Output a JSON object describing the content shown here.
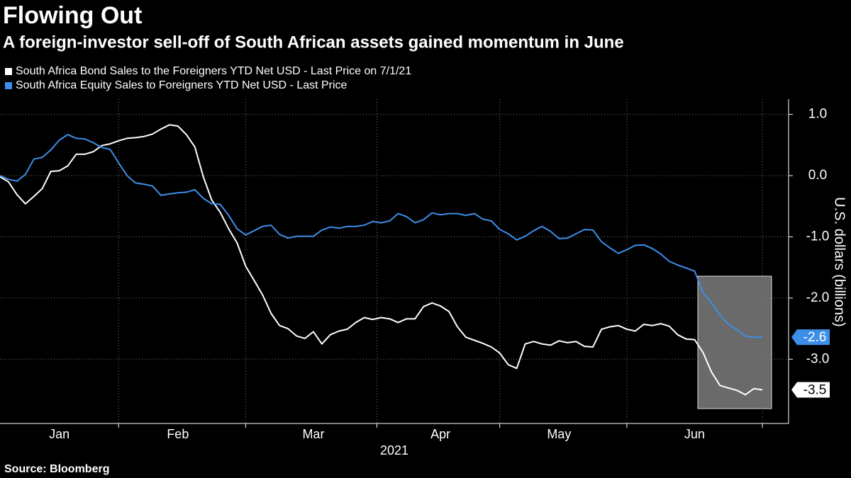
{
  "chart_data": {
    "type": "line",
    "title": "Flowing Out",
    "subtitle": "A foreign-investor sell-off of South African assets gained momentum in June",
    "source": "Source: Bloomberg",
    "y_label": "U.S. dollars (billions)",
    "x_label": "2021",
    "categories": [
      null,
      null,
      null,
      null,
      null,
      null,
      null,
      "Jan",
      null,
      null,
      null,
      null,
      null,
      null,
      null,
      null,
      null,
      null,
      null,
      null,
      null,
      "Feb",
      null,
      null,
      null,
      null,
      null,
      null,
      null,
      null,
      null,
      null,
      null,
      null,
      null,
      null,
      null,
      "Mar",
      null,
      null,
      null,
      null,
      null,
      null,
      null,
      null,
      null,
      null,
      null,
      null,
      null,
      null,
      "Apr",
      null,
      null,
      null,
      null,
      null,
      null,
      null,
      null,
      null,
      null,
      null,
      null,
      null,
      "May",
      null,
      null,
      null,
      null,
      null,
      null,
      null,
      null,
      null,
      null,
      null,
      null,
      null,
      null,
      null,
      "Jun",
      null,
      null,
      null,
      null,
      null,
      null,
      null,
      null
    ],
    "series": [
      {
        "name": "South Africa Bond Sales to the Foreigners YTD Net USD - Last Price on 7/1/21",
        "color": "#ffffff",
        "values": [
          -0.02,
          -0.1,
          -0.31,
          -0.46,
          -0.34,
          -0.21,
          0.07,
          0.08,
          0.16,
          0.35,
          0.35,
          0.39,
          0.49,
          0.52,
          0.57,
          0.61,
          0.62,
          0.64,
          0.68,
          0.76,
          0.83,
          0.81,
          0.67,
          0.47,
          -0.02,
          -0.4,
          -0.6,
          -0.87,
          -1.1,
          -1.48,
          -1.71,
          -1.95,
          -2.25,
          -2.45,
          -2.5,
          -2.62,
          -2.66,
          -2.55,
          -2.75,
          -2.6,
          -2.54,
          -2.51,
          -2.4,
          -2.32,
          -2.35,
          -2.32,
          -2.34,
          -2.4,
          -2.34,
          -2.34,
          -2.14,
          -2.08,
          -2.13,
          -2.22,
          -2.47,
          -2.64,
          -2.69,
          -2.74,
          -2.8,
          -2.9,
          -3.09,
          -3.15,
          -2.75,
          -2.71,
          -2.75,
          -2.77,
          -2.7,
          -2.73,
          -2.71,
          -2.79,
          -2.8,
          -2.51,
          -2.47,
          -2.45,
          -2.51,
          -2.54,
          -2.43,
          -2.45,
          -2.42,
          -2.46,
          -2.6,
          -2.67,
          -2.68,
          -2.89,
          -3.21,
          -3.43,
          -3.47,
          -3.51,
          -3.58,
          -3.48,
          -3.5
        ],
        "value_labels": [
          null,
          null,
          null,
          null,
          null,
          null,
          null,
          null,
          null,
          null,
          null,
          null,
          null,
          null,
          null,
          null,
          null,
          null,
          null,
          null,
          null,
          null,
          null,
          null,
          null,
          null,
          null,
          null,
          null,
          null,
          null,
          null,
          null,
          null,
          null,
          null,
          null,
          null,
          null,
          null,
          null,
          null,
          null,
          null,
          null,
          null,
          null,
          null,
          null,
          null,
          null,
          null,
          null,
          null,
          null,
          null,
          null,
          null,
          null,
          null,
          null,
          null,
          null,
          null,
          null,
          null,
          null,
          null,
          null,
          null,
          null,
          null,
          null,
          null,
          null,
          null,
          null,
          null,
          null,
          null,
          null,
          null,
          null,
          null,
          null,
          null,
          null,
          null,
          null,
          null,
          "-3.5"
        ]
      },
      {
        "name": "South Africa Equity Sales to Foreigners YTD Net USD - Last Price",
        "color": "#3d8ee8",
        "values": [
          0.0,
          -0.06,
          -0.09,
          0.02,
          0.27,
          0.3,
          0.42,
          0.58,
          0.67,
          0.61,
          0.6,
          0.54,
          0.46,
          0.43,
          0.21,
          0.0,
          -0.12,
          -0.14,
          -0.17,
          -0.32,
          -0.3,
          -0.28,
          -0.27,
          -0.23,
          -0.37,
          -0.46,
          -0.47,
          -0.65,
          -0.87,
          -0.97,
          -0.9,
          -0.83,
          -0.81,
          -0.96,
          -1.02,
          -0.99,
          -0.99,
          -0.99,
          -0.89,
          -0.84,
          -0.86,
          -0.83,
          -0.83,
          -0.81,
          -0.75,
          -0.77,
          -0.74,
          -0.62,
          -0.67,
          -0.77,
          -0.72,
          -0.61,
          -0.64,
          -0.62,
          -0.62,
          -0.65,
          -0.62,
          -0.71,
          -0.74,
          -0.88,
          -0.95,
          -1.05,
          -0.99,
          -0.9,
          -0.83,
          -0.91,
          -1.03,
          -1.02,
          -0.95,
          -0.88,
          -0.89,
          -1.08,
          -1.18,
          -1.27,
          -1.21,
          -1.14,
          -1.13,
          -1.19,
          -1.28,
          -1.4,
          -1.46,
          -1.51,
          -1.56,
          -1.91,
          -2.08,
          -2.28,
          -2.43,
          -2.52,
          -2.62,
          -2.64,
          -2.64
        ],
        "value_labels": [
          null,
          null,
          null,
          null,
          null,
          null,
          null,
          null,
          null,
          null,
          null,
          null,
          null,
          null,
          null,
          null,
          null,
          null,
          null,
          null,
          null,
          null,
          null,
          null,
          null,
          null,
          null,
          null,
          null,
          null,
          null,
          null,
          null,
          null,
          null,
          null,
          null,
          null,
          null,
          null,
          null,
          null,
          null,
          null,
          null,
          null,
          null,
          null,
          null,
          null,
          null,
          null,
          null,
          null,
          null,
          null,
          null,
          null,
          null,
          null,
          null,
          null,
          null,
          null,
          null,
          null,
          null,
          null,
          null,
          null,
          null,
          null,
          null,
          null,
          null,
          null,
          null,
          null,
          null,
          null,
          null,
          null,
          null,
          null,
          null,
          null,
          null,
          null,
          null,
          null,
          "-2.6"
        ]
      }
    ],
    "ylim": [
      -4.05,
      1.25
    ],
    "yticks": [
      {
        "value": 1,
        "label": "1.0"
      },
      {
        "value": 0,
        "label": "0.0"
      },
      {
        "value": -1,
        "label": "-1.0"
      },
      {
        "value": -2,
        "label": "-2.0"
      },
      {
        "value": -3,
        "label": "-3.0"
      }
    ],
    "grid": true
  }
}
